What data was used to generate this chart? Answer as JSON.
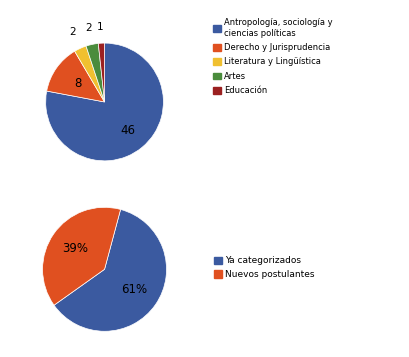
{
  "pie1": {
    "values": [
      46,
      8,
      2,
      2,
      1
    ],
    "colors": [
      "#3b5aa0",
      "#e05020",
      "#f0c030",
      "#4a8c3c",
      "#9b2020"
    ],
    "labels": [
      "46",
      "8",
      "2",
      "2",
      "1"
    ],
    "legend_labels": [
      "Antropología, sociología y\nciencias políticas",
      "Derecho y Jurisprudencia",
      "Literatura y Lingüística",
      "Artes",
      "Educación"
    ],
    "startangle": 90
  },
  "pie2": {
    "values": [
      61,
      39
    ],
    "colors": [
      "#3b5aa0",
      "#e05020"
    ],
    "labels": [
      "61%",
      "39%"
    ],
    "legend_labels": [
      "Ya categorizados",
      "Nuevos postulantes"
    ],
    "startangle": 75
  },
  "background_color": "#ffffff",
  "border_color": "#cccccc"
}
